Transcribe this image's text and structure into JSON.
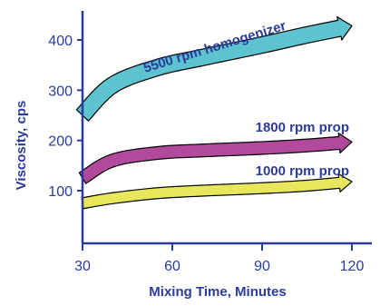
{
  "chart_data": {
    "type": "line",
    "xlabel": "Mixing Time, Minutes",
    "ylabel": "Viscosity, cps",
    "xlim": [
      30,
      125
    ],
    "ylim": [
      30,
      470
    ],
    "xticks": [
      30,
      60,
      90,
      120
    ],
    "yticks": [
      100,
      200,
      300,
      400
    ],
    "grid": false,
    "series": [
      {
        "name": "5500 rpm homogenizer",
        "color": "#5CC3CF",
        "x": [
          30,
          40,
          55,
          70,
          90,
          105,
          120
        ],
        "y": [
          250,
          310,
          345,
          365,
          390,
          410,
          428
        ]
      },
      {
        "name": "1800 rpm prop",
        "color": "#B14A9C",
        "x": [
          30,
          40,
          55,
          70,
          90,
          105,
          120
        ],
        "y": [
          125,
          160,
          175,
          180,
          185,
          190,
          197
        ]
      },
      {
        "name": "1000 rpm prop",
        "color": "#E8E65A",
        "x": [
          30,
          40,
          55,
          70,
          90,
          105,
          120
        ],
        "y": [
          75,
          85,
          95,
          100,
          105,
          110,
          118
        ]
      }
    ]
  }
}
